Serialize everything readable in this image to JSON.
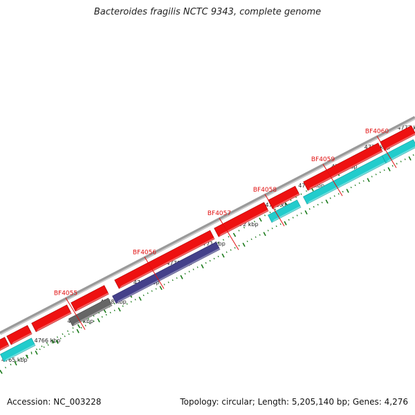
{
  "title": "Bacteroides fragilis NCTC 9343, complete genome",
  "footer": {
    "accession": "Accession: NC_003228",
    "summary": "Topology: circular; Length: 5,205,140 bp; Genes: 4,276"
  },
  "colors": {
    "background": "#ffffff",
    "gene_label": "#e01010",
    "tick": "#1a7a1a",
    "backbone": "#9a9a9a",
    "cds_red": "#ee1111",
    "feature_cyan": "#22cccc",
    "feature_navy": "#44408a",
    "feature_gray": "#666666"
  },
  "scale": {
    "labels": [
      "4765 kbp",
      "4766 kbp",
      "4767 kbp",
      "4768 kbp",
      "4769 kbp",
      "4770 kbp",
      "4771 kbp",
      "4772 kbp",
      "4773 kbp",
      "4774 kbp",
      "4775 kbp",
      "4776 kbp",
      "4777 kbp"
    ]
  },
  "gene_labels": [
    {
      "name": "BF4055",
      "t": 0.165
    },
    {
      "name": "BF4056",
      "t": 0.355
    },
    {
      "name": "BF4057",
      "t": 0.535
    },
    {
      "name": "BF4058",
      "t": 0.645
    },
    {
      "name": "BF4059",
      "t": 0.785
    },
    {
      "name": "BF4060",
      "t": 0.915
    }
  ],
  "red_features": [
    {
      "t0": -0.02,
      "t1": 0.005,
      "kind": "red"
    },
    {
      "t0": 0.01,
      "t1": 0.06,
      "kind": "red"
    },
    {
      "t0": 0.07,
      "t1": 0.155,
      "kind": "red"
    },
    {
      "t0": 0.165,
      "t1": 0.245,
      "kind": "red"
    },
    {
      "t0": 0.27,
      "t1": 0.5,
      "kind": "red"
    },
    {
      "t0": 0.51,
      "t1": 0.63,
      "kind": "red"
    },
    {
      "t0": 0.64,
      "t1": 0.705,
      "kind": "red"
    },
    {
      "t0": 0.725,
      "t1": 0.905,
      "kind": "red"
    },
    {
      "t0": 0.91,
      "t1": 0.985,
      "kind": "red"
    }
  ],
  "upper_features": [
    {
      "t0": -0.02,
      "t1": 0.055,
      "kind": "cyan"
    },
    {
      "t0": 0.145,
      "t1": 0.24,
      "kind": "gray"
    },
    {
      "t0": 0.25,
      "t1": 0.5,
      "kind": "navy"
    },
    {
      "t0": 0.625,
      "t1": 0.695,
      "kind": "cyan"
    },
    {
      "t0": 0.71,
      "t1": 0.9,
      "kind": "cyan"
    },
    {
      "t0": 0.9,
      "t1": 0.975,
      "kind": "cyan"
    }
  ]
}
